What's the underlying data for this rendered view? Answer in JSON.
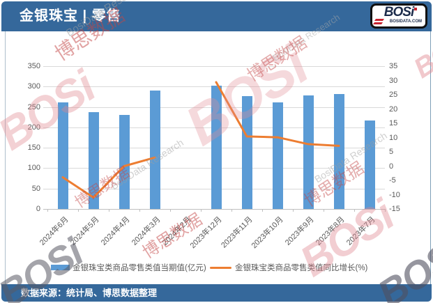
{
  "header": {
    "title": "金银珠宝 | 零售",
    "logo": {
      "text": "BOSi",
      "subtext": "BOSIDATA.COM"
    }
  },
  "footer": {
    "source": "数据来源：统计局、博思数据整理"
  },
  "watermark": {
    "brand": "BOSi",
    "cn": "博思数据",
    "en": "BosiData Research"
  },
  "colors": {
    "header_bg": "#35689B",
    "bar": "#5B9BD5",
    "line": "#ED7D31",
    "grid": "#D9D9D9",
    "axis_text": "#595959"
  },
  "chart_data": {
    "type": "bar",
    "categories": [
      "2024年6月",
      "2024年5月",
      "2024年4月",
      "2024年3月",
      "2024年2月",
      "2023年12月",
      "2023年11月",
      "2023年10月",
      "2023年9月",
      "2023年8月",
      "2023年7月"
    ],
    "series": [
      {
        "name": "金银珠宝类商品零售类值当期值(亿元)",
        "kind": "bar",
        "axis": "left",
        "color": "#5B9BD5",
        "values": [
          261,
          238,
          231,
          290,
          null,
          303,
          276,
          261,
          278,
          281,
          217
        ]
      },
      {
        "name": "金银珠宝类商品零售类值同比增长(%)",
        "kind": "line",
        "axis": "right",
        "color": "#ED7D31",
        "values": [
          -3.9,
          -11,
          0,
          3,
          null,
          29.4,
          10.4,
          10.1,
          7.7,
          7.1,
          null
        ]
      }
    ],
    "left_axis": {
      "min": 0,
      "max": 350,
      "step": 50
    },
    "right_axis": {
      "min": -15,
      "max": 35,
      "step": 5
    },
    "grid": true,
    "legend_position": "bottom",
    "title": ""
  }
}
